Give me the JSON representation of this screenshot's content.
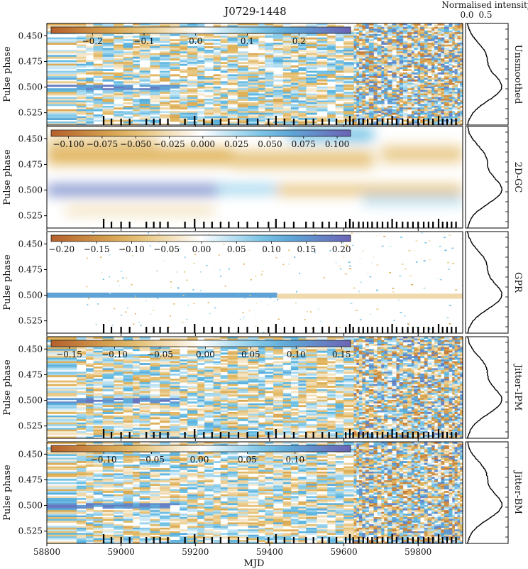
{
  "chart_data": {
    "type": "heatmap",
    "title": "J0729-1448",
    "xlabel": "MJD",
    "ylabel": "Pulse phase",
    "xlim": [
      58800,
      59920
    ],
    "ylim": [
      0.438,
      0.537
    ],
    "x_ticks": [
      58800,
      59000,
      59200,
      59400,
      59600,
      59800
    ],
    "x_tick_labels": [
      "58800",
      "59000",
      "59200",
      "59400",
      "59600",
      "59800"
    ],
    "y_ticks": [
      0.45,
      0.475,
      0.5,
      0.525
    ],
    "y_tick_labels": [
      "0.450",
      "0.475",
      "0.500",
      "0.525"
    ],
    "colormap": {
      "negative": "#b5602c",
      "mid_negative": "#e0b45a",
      "zero": "#ffffff",
      "mid_positive": "#5bb7e0",
      "positive": "#6b63b5"
    },
    "observation_epochs": [
      58953,
      58974,
      59000,
      59023,
      59068,
      59088,
      59105,
      59126,
      59172,
      59198,
      59223,
      59245,
      59268,
      59290,
      59316,
      59340,
      59368,
      59397,
      59417,
      59440,
      59465,
      59498,
      59518,
      59542,
      59560,
      59580,
      59605,
      59616,
      59625,
      59640,
      59652,
      59664,
      59676,
      59690,
      59704,
      59718,
      59730,
      59742,
      59758,
      59772,
      59786,
      59800,
      59815,
      59828,
      59840,
      59855,
      59866,
      59878,
      59890,
      59902
    ],
    "profile_panel": {
      "xlabel": "Normalised intensity",
      "x_ticks": [
        0.0,
        0.5
      ],
      "x_tick_labels": [
        "0.0",
        "0.5"
      ],
      "peak_phase": 0.5
    },
    "panels": [
      {
        "label": "Unsmoothed",
        "style": "noisy",
        "colorbar_ticks": [
          -0.2,
          -0.1,
          0.0,
          0.1,
          0.2
        ],
        "colorbar_tick_labels": [
          "−0.2",
          "−0.1",
          "0.0",
          "0.1",
          "0.2"
        ],
        "colorbar_range": [
          -0.28,
          0.3
        ]
      },
      {
        "label": "2D-GC",
        "style": "smooth",
        "colorbar_ticks": [
          -0.1,
          -0.075,
          -0.05,
          -0.025,
          0.0,
          0.025,
          0.05,
          0.075,
          0.1
        ],
        "colorbar_tick_labels": [
          "−0.100",
          "−0.075",
          "−0.050",
          "−0.025",
          "0.000",
          "0.025",
          "0.050",
          "0.075",
          "0.100"
        ],
        "colorbar_range": [
          -0.113,
          0.11
        ]
      },
      {
        "label": "GPR",
        "style": "gpr",
        "colorbar_ticks": [
          -0.2,
          -0.15,
          -0.1,
          -0.05,
          0.0,
          0.05,
          0.1,
          0.15,
          0.2
        ],
        "colorbar_tick_labels": [
          "−0.20",
          "−0.15",
          "−0.10",
          "−0.05",
          "0.00",
          "0.05",
          "0.10",
          "0.15",
          "0.20"
        ],
        "colorbar_range": [
          -0.215,
          0.213
        ]
      },
      {
        "label": "Jitter-IPM",
        "style": "noisy",
        "colorbar_ticks": [
          -0.15,
          -0.1,
          -0.05,
          0.0,
          0.05,
          0.1,
          0.15
        ],
        "colorbar_tick_labels": [
          "−0.15",
          "−0.10",
          "−0.05",
          "0.00",
          "0.05",
          "0.10",
          "0.15"
        ],
        "colorbar_range": [
          -0.17,
          0.16
        ]
      },
      {
        "label": "Jitter-BM",
        "style": "noisy",
        "colorbar_ticks": [
          -0.1,
          -0.05,
          0.0,
          0.05,
          0.1
        ],
        "colorbar_tick_labels": [
          "−0.10",
          "−0.05",
          "0.00",
          "0.05",
          "0.10"
        ],
        "colorbar_range": [
          -0.155,
          0.158
        ]
      }
    ]
  }
}
